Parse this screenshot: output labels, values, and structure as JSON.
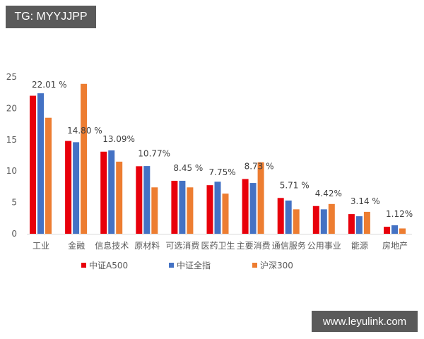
{
  "watermarks": {
    "top_left": "TG: MYYJJPP",
    "bottom_right": "www.leyulink.com"
  },
  "colors": {
    "series_a500": "#E8000B",
    "series_all": "#4472C4",
    "series_hs300": "#ED7D31",
    "axis": "#D9D9D9",
    "text": "#595959"
  },
  "chart_data": {
    "type": "bar",
    "title": "",
    "xlabel": "",
    "ylabel": "",
    "ylim": [
      0,
      25
    ],
    "yticks": [
      0,
      5,
      10,
      15,
      20,
      25
    ],
    "grid": false,
    "legend_position": "bottom",
    "categories": [
      "工业",
      "金融",
      "信息技术",
      "原材料",
      "可选消费",
      "医药卫生",
      "主要消费",
      "通信服务",
      "公用事业",
      "能源",
      "房地产"
    ],
    "series": [
      {
        "name": "中证A500",
        "color": "#E8000B",
        "values": [
          22.01,
          14.8,
          13.09,
          10.77,
          8.45,
          7.75,
          8.73,
          5.71,
          4.42,
          3.14,
          1.12
        ]
      },
      {
        "name": "中证全指",
        "color": "#4472C4",
        "values": [
          22.4,
          14.6,
          13.3,
          10.8,
          8.45,
          8.3,
          8.1,
          5.3,
          3.9,
          2.8,
          1.35
        ]
      },
      {
        "name": "沪深300",
        "color": "#ED7D31",
        "values": [
          18.5,
          23.9,
          11.5,
          7.4,
          7.4,
          6.4,
          11.4,
          3.9,
          4.75,
          3.5,
          0.85
        ]
      }
    ],
    "data_labels": [
      "22.01 %",
      "14.80 %",
      "13.09%",
      "10.77%",
      "8.45 %",
      "7.75%",
      "8.73 %",
      "5.71 %",
      "4.42%",
      "3.14 %",
      "1.12%"
    ]
  },
  "legend": {
    "items": [
      {
        "label": "中证A500",
        "color": "#E8000B"
      },
      {
        "label": "中证全指",
        "color": "#4472C4"
      },
      {
        "label": "沪深300",
        "color": "#ED7D31"
      }
    ]
  }
}
